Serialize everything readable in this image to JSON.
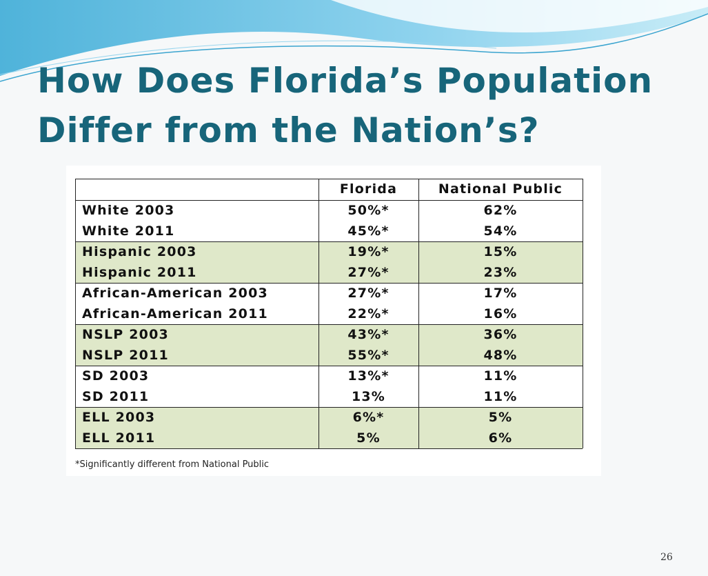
{
  "header": {
    "title_lines": [
      "How Does Florida’s Population",
      "Differ from the Nation’s?"
    ]
  },
  "table": {
    "columns": [
      "Florida",
      "National Public"
    ],
    "rows": [
      [
        "White 2003",
        "50%*",
        "62%"
      ],
      [
        "White 2011",
        "45%*",
        "54%"
      ],
      [
        "Hispanic 2003",
        "19%*",
        "15%"
      ],
      [
        "Hispanic 2011",
        "27%*",
        "23%"
      ],
      [
        "African-American 2003",
        "27%*",
        "17%"
      ],
      [
        "African-American 2011",
        "22%*",
        "16%"
      ],
      [
        "NSLP 2003",
        "43%*",
        "36%"
      ],
      [
        "NSLP 2011",
        "55%*",
        "48%"
      ],
      [
        "SD 2003",
        "13%*",
        "11%"
      ],
      [
        "SD 2011",
        "13%",
        "11%"
      ],
      [
        "ELL 2003",
        "6%*",
        "5%"
      ],
      [
        "ELL 2011",
        "5%",
        "6%"
      ]
    ],
    "footnote": "*Significantly different from National Public"
  },
  "footer": {
    "page_number": "26"
  }
}
